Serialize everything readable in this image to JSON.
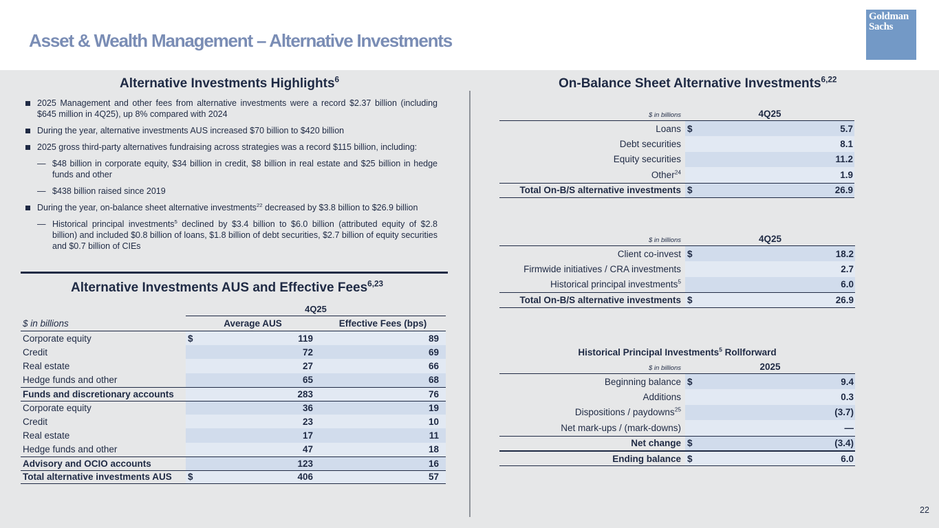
{
  "title": "Asset & Wealth Management – Alternative Investments",
  "logo": {
    "line1": "Goldman",
    "line2": "Sachs",
    "color": "#7399c6"
  },
  "page_number": "22",
  "highlights": {
    "title": "Alternative Investments Highlights",
    "title_sup": "6",
    "items": [
      {
        "level": 1,
        "text": "2025 Management and other fees from alternative investments were a record $2.37 billion (including $645 million in 4Q25), up 8% compared with 2024"
      },
      {
        "level": 1,
        "text": "During the year, alternative investments AUS increased $70 billion to $420 billion"
      },
      {
        "level": 1,
        "text": "2025 gross third-party alternatives fundraising across strategies was a record $115 billion, including:"
      },
      {
        "level": 2,
        "text": "$48 billion in corporate equity, $34 billion in credit, $8 billion in real estate and $25 billion in hedge funds and other"
      },
      {
        "level": 2,
        "text": "$438 billion raised since 2019"
      },
      {
        "level": 1,
        "text_a": "During the year, on-balance sheet alternative investments",
        "sup": "22",
        "text_b": " decreased by $3.8 billion to $26.9 billion"
      },
      {
        "level": 2,
        "text_a": "Historical principal investments",
        "sup": "5",
        "text_b": " declined by $3.4 billion to $6.0 billion (attributed equity of $2.8 billion) and included $0.8 billion of loans, $1.8 billion of debt securities, $2.7 billion of equity securities and $0.7 billion of CIEs"
      }
    ]
  },
  "aus_table": {
    "title": "Alternative Investments AUS and Effective Fees",
    "title_sup": "6,23",
    "period": "4Q25",
    "unit": "$ in billions",
    "col_aus": "Average AUS",
    "col_fees": "Effective Fees (bps)",
    "rows": [
      {
        "label": "Corporate equity",
        "dollar": "$",
        "aus": "119",
        "fees": "89"
      },
      {
        "label": "Credit",
        "dollar": "",
        "aus": "72",
        "fees": "69"
      },
      {
        "label": "Real estate",
        "dollar": "",
        "aus": "27",
        "fees": "66"
      },
      {
        "label": "Hedge funds and other",
        "dollar": "",
        "aus": "65",
        "fees": "68"
      },
      {
        "label": "Funds and discretionary accounts",
        "dollar": "",
        "aus": "283",
        "fees": "76"
      },
      {
        "label": "Corporate equity",
        "dollar": "",
        "aus": "36",
        "fees": "19"
      },
      {
        "label": "Credit",
        "dollar": "",
        "aus": "23",
        "fees": "10"
      },
      {
        "label": "Real estate",
        "dollar": "",
        "aus": "17",
        "fees": "11"
      },
      {
        "label": "Hedge funds and other",
        "dollar": "",
        "aus": "47",
        "fees": "18"
      },
      {
        "label": "Advisory and OCIO accounts",
        "dollar": "",
        "aus": "123",
        "fees": "16"
      },
      {
        "label": "Total alternative investments AUS",
        "dollar": "$",
        "aus": "406",
        "fees": "57"
      }
    ]
  },
  "obs": {
    "title": "On-Balance Sheet Alternative Investments",
    "title_sup": "6,22",
    "table1": {
      "unit": "$ in billions",
      "period": "4Q25",
      "rows": [
        {
          "label": "Loans",
          "sup": "",
          "dollar": "$",
          "value": "5.7"
        },
        {
          "label": "Debt securities",
          "sup": "",
          "dollar": "",
          "value": "8.1"
        },
        {
          "label": "Equity securities",
          "sup": "",
          "dollar": "",
          "value": "11.2"
        },
        {
          "label": "Other",
          "sup": "24",
          "dollar": "",
          "value": "1.9"
        },
        {
          "label": "Total On-B/S alternative investments",
          "sup": "",
          "dollar": "$",
          "value": "26.9"
        }
      ]
    },
    "table2": {
      "unit": "$ in billions",
      "period": "4Q25",
      "rows": [
        {
          "label": "Client co-invest",
          "sup": "",
          "dollar": "$",
          "value": "18.2"
        },
        {
          "label": "Firmwide initiatives / CRA investments",
          "sup": "",
          "dollar": "",
          "value": "2.7"
        },
        {
          "label": "Historical principal investments",
          "sup": "5",
          "dollar": "",
          "value": "6.0"
        },
        {
          "label": "Total On-B/S alternative investments",
          "sup": "",
          "dollar": "$",
          "value": "26.9"
        }
      ]
    }
  },
  "rollforward": {
    "title_a": "Historical Principal Investments",
    "title_sup": "5",
    "title_b": " Rollforward",
    "unit": "$ in billions",
    "period": "2025",
    "rows": [
      {
        "label": "Beginning balance",
        "sup": "",
        "dollar": "$",
        "value": "9.4"
      },
      {
        "label": "Additions",
        "sup": "",
        "dollar": "",
        "value": "0.3"
      },
      {
        "label": "Dispositions / paydowns",
        "sup": "25",
        "dollar": "",
        "value": "(3.7)"
      },
      {
        "label": "Net mark-ups / (mark-downs)",
        "sup": "",
        "dollar": "",
        "value": "—"
      },
      {
        "label": "Net change",
        "sup": "",
        "dollar": "$",
        "value": "(3.4)"
      },
      {
        "label": "Ending balance",
        "sup": "",
        "dollar": "$",
        "value": "6.0"
      }
    ]
  }
}
